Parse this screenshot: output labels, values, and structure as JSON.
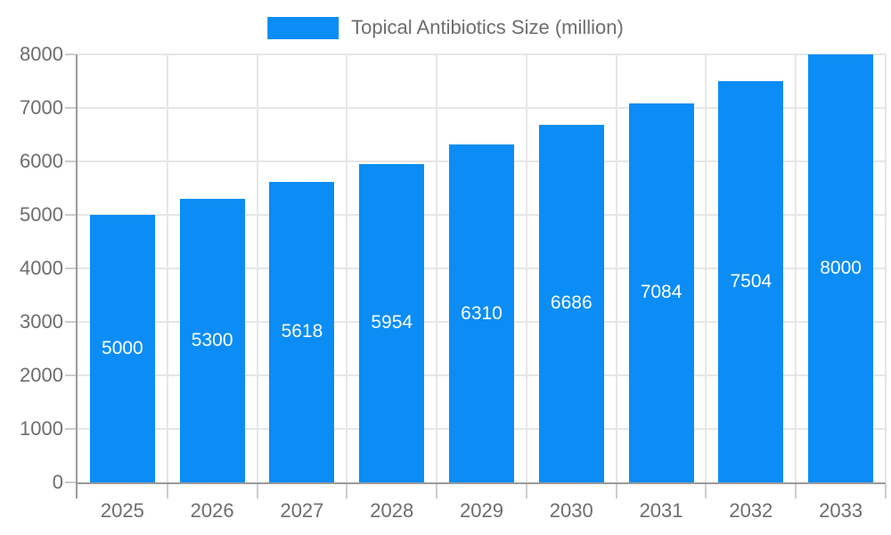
{
  "legend": {
    "label": "Topical Antibiotics Size (million)"
  },
  "chart_data": {
    "type": "bar",
    "title": "Topical Antibiotics Size (million)",
    "categories": [
      "2025",
      "2026",
      "2027",
      "2028",
      "2029",
      "2030",
      "2031",
      "2032",
      "2033"
    ],
    "values": [
      5000,
      5300,
      5618,
      5954,
      6310,
      6686,
      7084,
      7504,
      8000
    ],
    "bar_labels_shown": true,
    "xlabel": "",
    "ylabel": "",
    "ylim": [
      0,
      8000
    ],
    "y_ticks": [
      0,
      1000,
      2000,
      3000,
      4000,
      5000,
      6000,
      7000,
      8000
    ],
    "grid": true,
    "legend_position": "top-center",
    "bar_color": "#0b8df5",
    "bar_label_color": "#ffffff",
    "axis_color": "#9a9a9a",
    "grid_color": "#e6e6e6",
    "tick_color": "#cccccc",
    "text_color": "#6d6d6d"
  }
}
